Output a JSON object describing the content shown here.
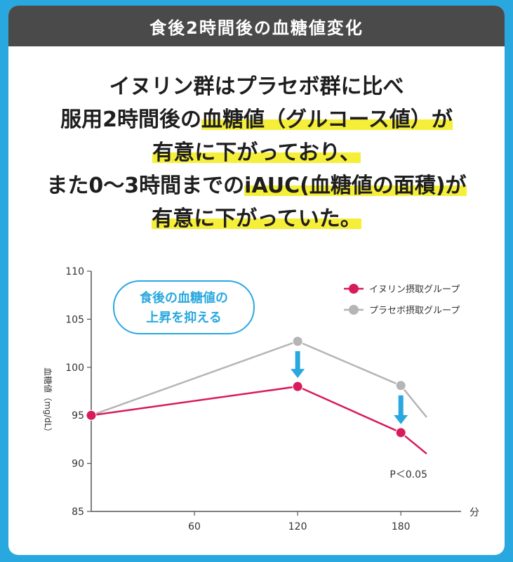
{
  "header": {
    "title": "食後2時間後の血糖値変化"
  },
  "headline": {
    "lines": [
      {
        "plain1": "イヌリン群はプラセボ群に比べ",
        "highlight": "",
        "plain2": ""
      },
      {
        "plain1": "服用2時間後の",
        "highlight": "血糖値（グルコース値）が",
        "plain2": ""
      },
      {
        "plain1": "",
        "highlight": "有意に下がっており、",
        "plain2": ""
      },
      {
        "plain1": "また0～3時間までの",
        "highlight": "iAUC(血糖値の面積)が",
        "plain2": ""
      },
      {
        "plain1": "",
        "highlight": "有意に下がっていた。",
        "plain2": ""
      }
    ]
  },
  "callout": {
    "line1": "食後の血糖値の",
    "line2": "上昇を抑える"
  },
  "annotation": "P＜0.05",
  "colors": {
    "inulin": "#d81b5c",
    "placebo": "#b5b5b5",
    "arrow": "#29a8df",
    "axis": "#555555"
  },
  "chart_data": {
    "type": "line",
    "ylabel": "血糖値（mg/dL）",
    "xunit": "分",
    "ylim": [
      85,
      110
    ],
    "yticks": [
      85,
      90,
      95,
      100,
      105,
      110
    ],
    "xlim": [
      0,
      215
    ],
    "xticks": [
      60,
      120,
      180
    ],
    "series": [
      {
        "name": "イヌリン摂取グループ",
        "color": "#d81b5c",
        "points": [
          {
            "x": 0,
            "y": 95.0
          },
          {
            "x": 120,
            "y": 98.0
          },
          {
            "x": 180,
            "y": 93.2
          },
          {
            "x": 195,
            "y": 91.0
          }
        ],
        "markers": [
          0,
          1,
          2
        ]
      },
      {
        "name": "プラセボ摂取グループ",
        "color": "#b5b5b5",
        "points": [
          {
            "x": 0,
            "y": 95.0
          },
          {
            "x": 120,
            "y": 102.7
          },
          {
            "x": 180,
            "y": 98.1
          },
          {
            "x": 195,
            "y": 94.8
          }
        ],
        "markers": [
          0,
          1,
          2
        ]
      }
    ],
    "arrows_at_x": [
      120,
      180
    ]
  }
}
